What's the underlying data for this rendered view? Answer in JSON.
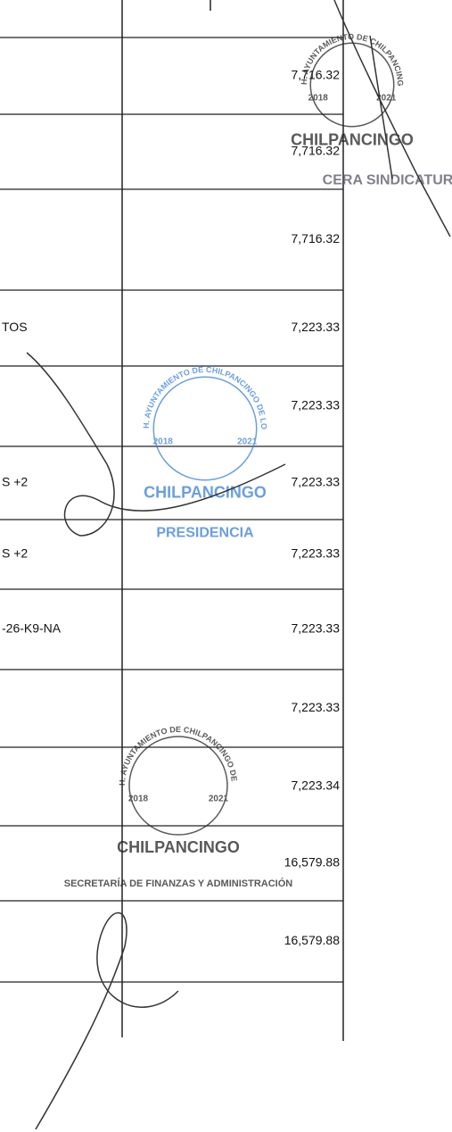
{
  "table": {
    "rows": [
      {
        "amount": "7,716.32"
      },
      {
        "amount": "7,716.32"
      },
      {
        "amount": "7,716.32"
      },
      {
        "description": "TOS",
        "amount": "7,223.33"
      },
      {
        "amount": "7,223.33"
      },
      {
        "description": "S +2",
        "amount": "7,223.33"
      },
      {
        "description": "S +2",
        "amount": "7,223.33"
      },
      {
        "description": "-26-K9-NA",
        "amount": "7,223.33"
      },
      {
        "amount": "7,223.33"
      },
      {
        "amount": "7,223.34"
      },
      {
        "amount": "16,579.88"
      },
      {
        "amount": "16,579.88"
      }
    ]
  },
  "stamps": [
    {
      "ring": "H. AYUNTAMIENTO DE CHILPANCINGO DE LOS BRAVO",
      "years": [
        "2018",
        "2021"
      ],
      "name": "CHILPANCINGO",
      "office": "CERA SINDICATUR"
    },
    {
      "ring": "H. AYUNTAMIENTO DE CHILPANCINGO DE LOS BRAVO",
      "years": [
        "2018",
        "2021"
      ],
      "name": "CHILPANCINGO",
      "office": "PRESIDENCIA"
    },
    {
      "ring": "H. AYUNTAMIENTO DE CHILPANCINGO DE LOS BRAVO, GRO",
      "years": [
        "2018",
        "2021"
      ],
      "name": "CHILPANCINGO",
      "office": "SECRETARÍA DE FINANZAS Y ADMINISTRACIÓN"
    }
  ]
}
